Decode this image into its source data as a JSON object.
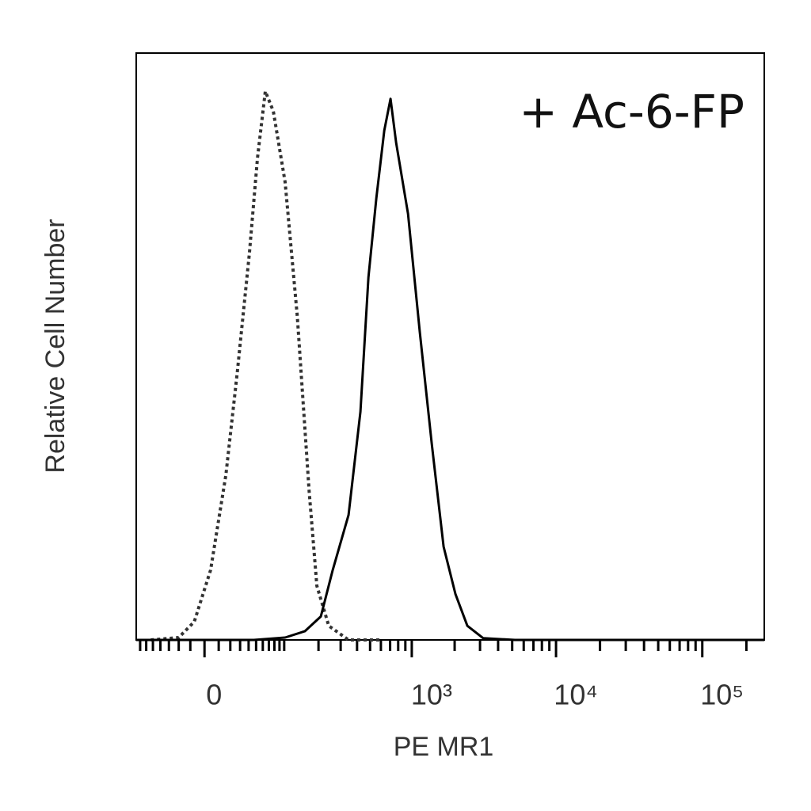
{
  "chart_data": {
    "type": "line",
    "annotation": "+ Ac-6-FP",
    "xlabel": "PE MR1",
    "ylabel": "Relative Cell Number",
    "xscale": "symlog",
    "linthresh": 40,
    "xlim": [
      -77,
      265000
    ],
    "ylim": [
      0,
      100
    ],
    "xticks": [
      0,
      {
        "value": 1000,
        "label": "10³"
      },
      {
        "value": 10000,
        "label": "10⁴"
      },
      {
        "value": 100000,
        "label": "10⁵"
      }
    ],
    "xminorticks": [
      -70,
      -60,
      -50,
      -40,
      -30,
      -20,
      -10,
      10,
      20,
      30,
      40,
      50,
      60,
      70,
      80,
      90,
      100,
      200,
      300,
      400,
      500,
      600,
      700,
      800,
      900,
      2000,
      3000,
      4000,
      5000,
      6000,
      7000,
      8000,
      9000,
      20000,
      30000,
      40000,
      50000,
      60000,
      70000,
      80000,
      90000,
      200000
    ],
    "series": [
      {
        "color": "#333333",
        "dash": "dotted",
        "x": [
          -53,
          -20,
          -7,
          4,
          16,
          27,
          41,
          52,
          64,
          78,
          102,
          132,
          167,
          194,
          242,
          345,
          594
        ],
        "values": [
          0,
          0.4,
          3.1,
          11.9,
          28.1,
          45.6,
          65.9,
          82.1,
          93.5,
          90.1,
          78,
          55.1,
          25.4,
          9.2,
          2.4,
          0,
          0
        ]
      },
      {
        "color": "#000000",
        "dash": "solid",
        "x": [
          -77,
          47,
          102,
          154,
          209,
          260,
          345,
          424,
          486,
          556,
          635,
          705,
          773,
          940,
          1141,
          1383,
          1675,
          2028,
          2452,
          3157,
          5220,
          265000
        ],
        "values": [
          0,
          0,
          0.4,
          1.5,
          4,
          11.9,
          21.3,
          38.9,
          61.8,
          75.3,
          86.8,
          92.2,
          84.7,
          72.6,
          52.4,
          33.5,
          15.9,
          7.8,
          2.4,
          0.3,
          0,
          0
        ]
      }
    ]
  }
}
